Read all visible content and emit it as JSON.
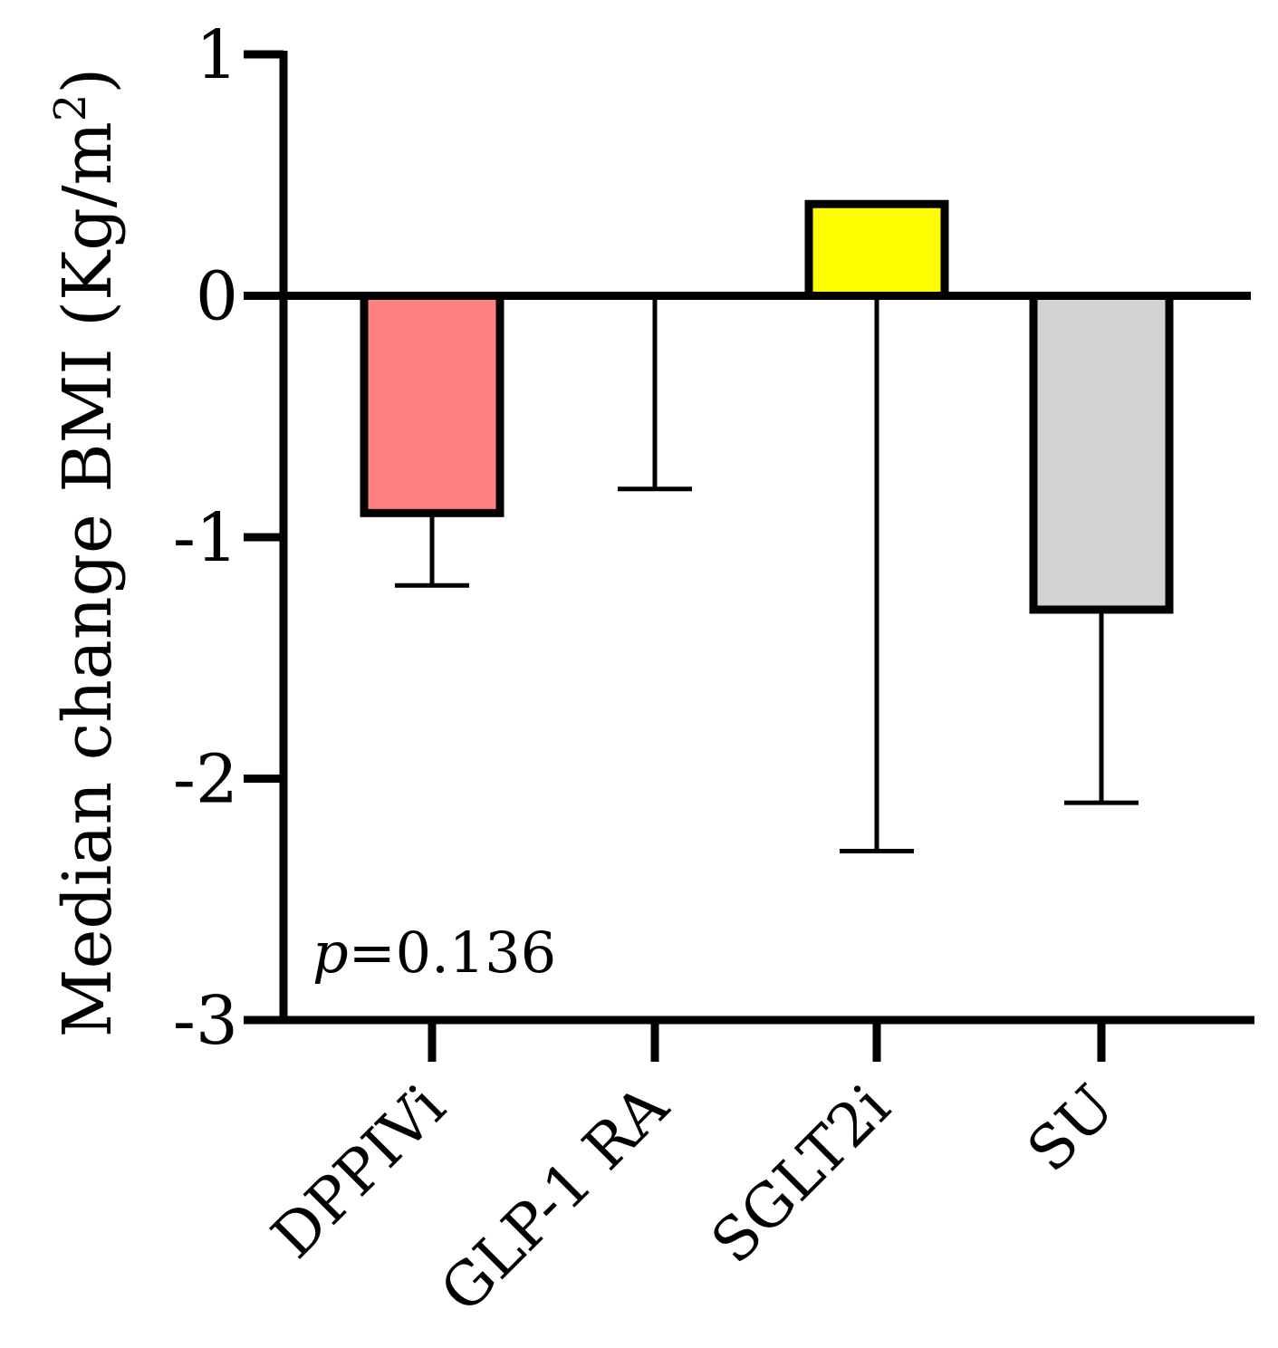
{
  "chart_data": {
    "type": "bar",
    "categories": [
      "DPPIVi",
      "GLP-1 RA",
      "SGLT2i",
      "SU"
    ],
    "values": [
      -0.9,
      0.0,
      0.38,
      -1.3
    ],
    "error_low": [
      -1.2,
      -0.8,
      -2.3,
      -2.1
    ],
    "colors": [
      "#ff8080",
      "#ffffff",
      "#ffff00",
      "#d3d3d3"
    ],
    "ylabel": "Median change BMI (Kg/m",
    "ylabel_sup": "2",
    "ylabel_close": ")",
    "ylim": [
      -3,
      1
    ],
    "yticks": [
      1,
      0,
      -1,
      -2,
      -3
    ],
    "ytick_labels": [
      "1",
      "0",
      "-1",
      "-2",
      "-3"
    ],
    "annotation": {
      "italic": "p",
      "text": "=0.136"
    },
    "grid": false
  }
}
